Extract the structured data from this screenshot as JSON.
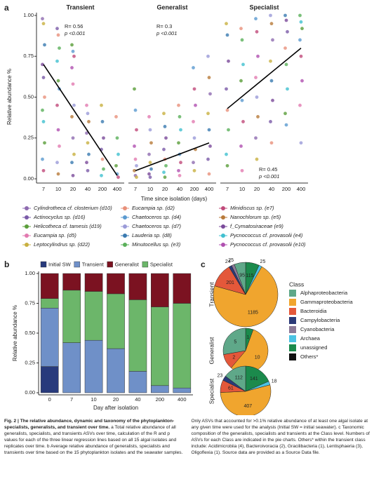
{
  "panel_a": {
    "label": "a",
    "ylabel": "Relative abundance %",
    "xlabel": "Time since isolation (days)",
    "categories": [
      "7",
      "10",
      "20",
      "40",
      "200",
      "400"
    ],
    "ylim": [
      0,
      1
    ],
    "yticks": [
      {
        "value": 0,
        "label": "0.00"
      },
      {
        "value": 0.25,
        "label": "0.25"
      },
      {
        "value": 0.5,
        "label": "0.50"
      },
      {
        "value": 0.75,
        "label": "0.75"
      },
      {
        "value": 1,
        "label": "1.00"
      }
    ],
    "facets": [
      {
        "title": "Transient",
        "r": "R= 0.56",
        "p": "p <0.001",
        "fit": [
          0.7,
          0.02
        ],
        "points": [
          [
            0.98,
            0.95,
            0.82,
            0.7,
            0.62,
            0.5,
            0.42,
            0.35,
            0.22,
            0.12,
            0.05
          ],
          [
            0.92,
            0.88,
            0.8,
            0.72,
            0.6,
            0.55,
            0.45,
            0.3,
            0.2,
            0.1,
            0.03
          ],
          [
            0.82,
            0.78,
            0.75,
            0.68,
            0.58,
            0.45,
            0.38,
            0.25,
            0.15,
            0.1,
            0.02
          ],
          [
            0.45,
            0.4,
            0.35,
            0.28,
            0.22,
            0.15,
            0.1,
            0.05
          ],
          [
            0.45,
            0.35,
            0.25,
            0.18,
            0.12,
            0.06,
            0.02
          ],
          [
            0.38,
            0.25,
            0.15,
            0.08,
            0.03,
            0.01
          ]
        ]
      },
      {
        "title": "Generalist",
        "r": "R= 0.3",
        "p": "p <0.001",
        "fit": [
          0.05,
          0.22
        ],
        "points": [
          [
            0.55,
            0.42,
            0.3,
            0.2,
            0.12,
            0.08,
            0.05,
            0.02,
            0.01
          ],
          [
            0.38,
            0.3,
            0.22,
            0.15,
            0.1,
            0.06,
            0.03,
            0.01
          ],
          [
            0.4,
            0.32,
            0.25,
            0.18,
            0.12,
            0.08,
            0.04,
            0.01
          ],
          [
            0.45,
            0.38,
            0.3,
            0.22,
            0.15,
            0.1,
            0.05,
            0.02
          ],
          [
            0.68,
            0.55,
            0.45,
            0.35,
            0.25,
            0.18,
            0.1,
            0.05
          ],
          [
            0.75,
            0.62,
            0.52,
            0.4,
            0.3,
            0.2,
            0.12,
            0.03
          ]
        ]
      },
      {
        "title": "Specialist",
        "r": "R= 0.45",
        "p": "p <0.001",
        "fit": [
          0.43,
          0.8
        ],
        "points": [
          [
            0.95,
            0.88,
            0.72,
            0.55,
            0.42,
            0.3,
            0.15,
            0.08
          ],
          [
            0.92,
            0.85,
            0.7,
            0.6,
            0.48,
            0.35,
            0.2,
            0.05
          ],
          [
            0.98,
            0.9,
            0.75,
            0.62,
            0.5,
            0.38,
            0.25,
            0.12
          ],
          [
            1.0,
            0.95,
            0.85,
            0.72,
            0.6,
            0.48,
            0.35,
            0.22
          ],
          [
            1.0,
            0.97,
            0.9,
            0.8,
            0.7,
            0.55,
            0.4,
            0.33
          ],
          [
            1.0,
            0.96,
            0.92,
            0.85,
            0.75,
            0.6,
            0.45,
            0.22
          ]
        ]
      }
    ],
    "legend": [
      {
        "name": "Cylindrotheca cf. closterium (d10)",
        "color": "#8e6bb0"
      },
      {
        "name": "Actinocyclus sp. (d16)",
        "color": "#7a5aa8"
      },
      {
        "name": "Helicotheca cf. tamesis (d19)",
        "color": "#5a9e3a"
      },
      {
        "name": "Eucampia sp. (d5)",
        "color": "#e27ab0"
      },
      {
        "name": "Leptocylindrus sp. (d22)",
        "color": "#c8b040"
      },
      {
        "name": "Eucampia sp. (d2)",
        "color": "#e8907a"
      },
      {
        "name": "Chaetoceros sp. (d4)",
        "color": "#5a9ad0"
      },
      {
        "name": "Chaetoceros sp. (d7)",
        "color": "#9a9ad8"
      },
      {
        "name": "Lauderia sp. (d8)",
        "color": "#3a7ab0"
      },
      {
        "name": "Minutocellus sp. (e3)",
        "color": "#5ab05a"
      },
      {
        "name": "Minidiscus sp. (e7)",
        "color": "#c04a7a"
      },
      {
        "name": "Nanochlorum sp. (e5)",
        "color": "#b87a3a"
      },
      {
        "name": "f_Cymatosiraceae (e9)",
        "color": "#7a4a9a"
      },
      {
        "name": "Pycnococcus cf. provasolii (e4)",
        "color": "#40c0d0"
      },
      {
        "name": "Pycnococcus cf. provasolii (e10)",
        "color": "#b050b0"
      }
    ]
  },
  "panel_b": {
    "type": "bar",
    "label": "b",
    "xlabel": "Day after isolation",
    "ylabel": "Relative abundance %",
    "categories": [
      "0",
      "7",
      "10",
      "20",
      "40",
      "200",
      "400"
    ],
    "ylim": [
      0,
      1
    ],
    "yticks": [
      {
        "value": 0,
        "label": "0.00"
      },
      {
        "value": 0.25,
        "label": "0.25"
      },
      {
        "value": 0.5,
        "label": "0.50"
      },
      {
        "value": 0.75,
        "label": "0.75"
      },
      {
        "value": 1,
        "label": "1.00"
      }
    ],
    "series": [
      {
        "name": "Initial SW",
        "color": "#283a7c",
        "values": [
          0.22,
          0,
          0,
          0,
          0,
          0,
          0
        ]
      },
      {
        "name": "Transient",
        "color": "#6f90c8",
        "values": [
          0.49,
          0.42,
          0.44,
          0.37,
          0.18,
          0.06,
          0.04
        ]
      },
      {
        "name": "Generalist",
        "color": "#7b1221",
        "values": [
          0.21,
          0.14,
          0.15,
          0.17,
          0.22,
          0.28,
          0.25
        ]
      },
      {
        "name": "Specialist",
        "color": "#6cb66a",
        "values": [
          0.08,
          0.44,
          0.41,
          0.46,
          0.6,
          0.66,
          0.71
        ]
      }
    ]
  },
  "panel_c": {
    "type": "pie",
    "label": "c",
    "legend_title": "Class",
    "classes": [
      {
        "name": "Alphaproteobacteria",
        "color": "#5fa889"
      },
      {
        "name": "Gammaproteobacteria",
        "color": "#f0a52e"
      },
      {
        "name": "Bacteroidia",
        "color": "#e4583a"
      },
      {
        "name": "Campylobacteria",
        "color": "#2b3a78"
      },
      {
        "name": "Cyanobacteria",
        "color": "#8c7a98"
      },
      {
        "name": "Archaea",
        "color": "#4cc3e3"
      },
      {
        "name": "unassigned",
        "color": "#1b8a4c"
      },
      {
        "name": "Others*",
        "color": "#111111"
      }
    ],
    "pies": [
      {
        "name": "Transient",
        "values": [
          95,
          1185,
          201,
          24,
          25,
          25,
          115,
          null
        ]
      },
      {
        "name": "Generalist",
        "values": [
          5,
          10,
          2,
          null,
          null,
          null,
          1,
          null
        ]
      },
      {
        "name": "Specialist",
        "values": [
          112,
          407,
          61,
          23,
          null,
          18,
          141,
          null
        ]
      }
    ]
  },
  "caption": {
    "title": "Fig. 2 | The relative abundance, dynamic and taxonomy of the phytoplankton-specialists, generalists, and transient over time.",
    "body": "a Total relative abundance of all generalists, specialists, and transients ASVs over time, calculation of the R and p values for each of the three linear regression lines based on all 15 algal isolates and replicates over time. b Average relative abundance of generalists, specialists and transients over time based on the 15 phytoplankton isolates and the seawater samples. Only ASVs that accounted for >0.1% relative abundance of at least one algal isolate at any given time were used for the analysis (Initial SW = initial seawater). c Taxonomic composition of the generalists, specialists and transients at the Class level. Numbers of ASVs for each Class are indicated in the pie charts. Others* within the transient class include: Acidimicrobiia (4), Bacteroivoracia (2), Gracilibacteria (1), Lentisphaeria (3), Oligoflexia (1). Source data are provided as a Source Data file."
  }
}
